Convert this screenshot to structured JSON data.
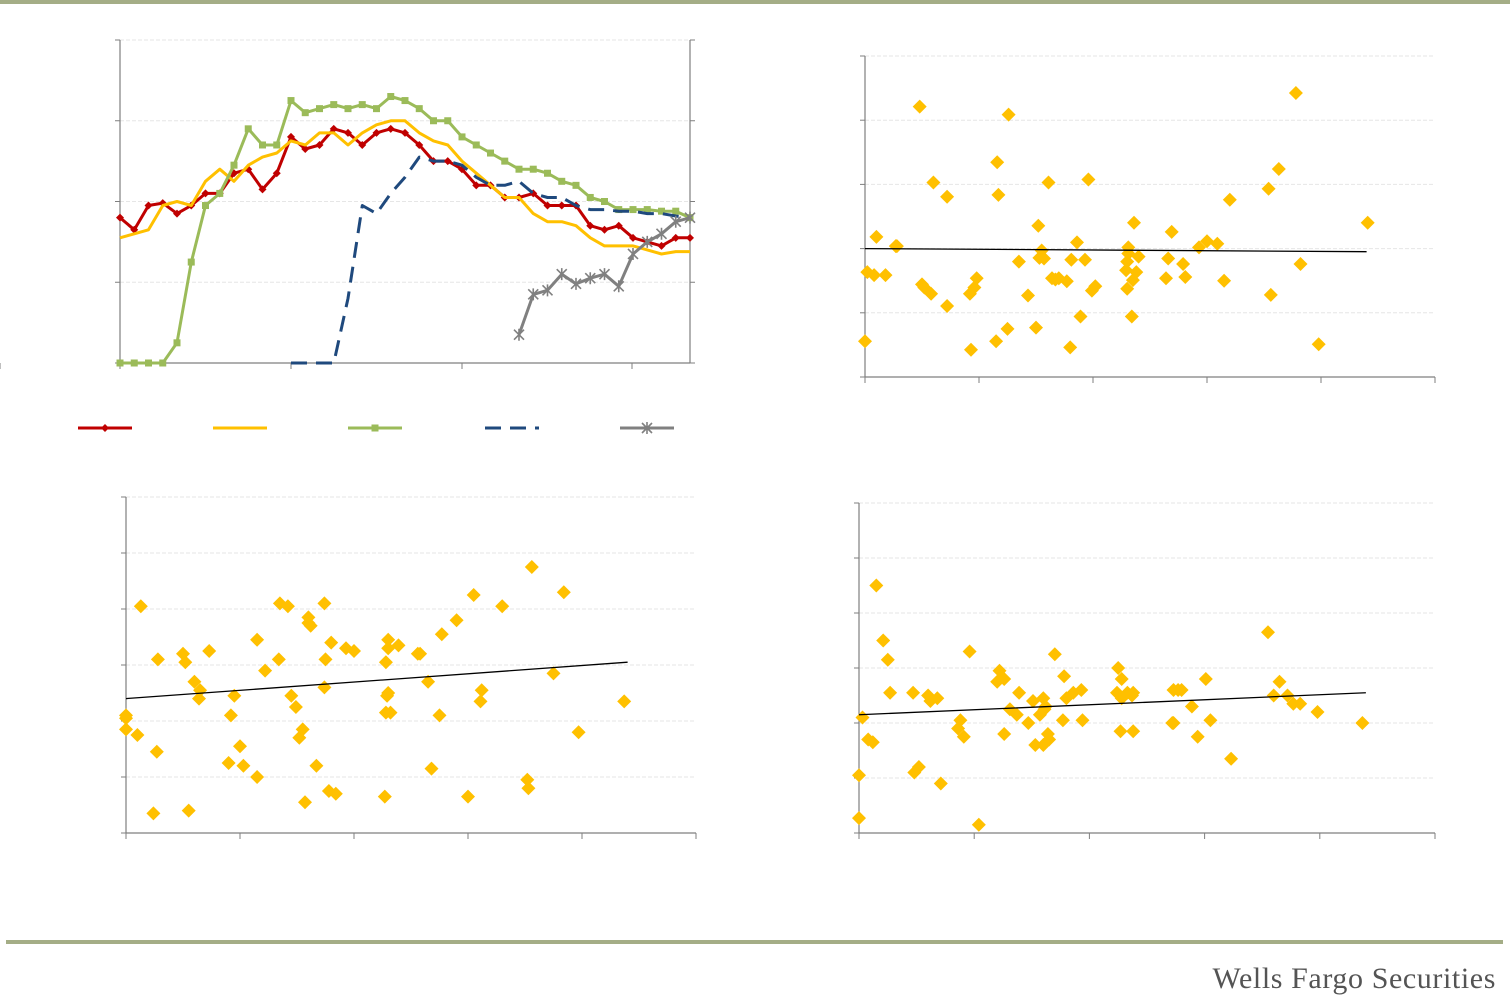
{
  "footer": {
    "brand": "Wells Fargo Securities"
  },
  "colors": {
    "red": "#c00000",
    "orange": "#ffc000",
    "green": "#9bbb59",
    "navy": "#1f497d",
    "gray": "#808080",
    "diamond": "#ffc000",
    "trend": "#000000",
    "axis": "#7f7f7f",
    "grid": "#e6e6e6"
  },
  "chart_data": [
    {
      "type": "line",
      "grid": true,
      "ylim": [
        0,
        4
      ],
      "series": [
        {
          "marker": "diamond",
          "color": "#c00000",
          "values": [
            1.8,
            1.65,
            1.95,
            1.98,
            1.85,
            1.95,
            2.1,
            2.1,
            2.35,
            2.4,
            2.15,
            2.35,
            2.8,
            2.65,
            2.7,
            2.9,
            2.85,
            2.7,
            2.85,
            2.9,
            2.85,
            2.7,
            2.5,
            2.5,
            2.4,
            2.2,
            2.2,
            2.05,
            2.05,
            2.1,
            1.95,
            1.95,
            1.95,
            1.7,
            1.65,
            1.7,
            1.55,
            1.5,
            1.45,
            1.55,
            1.55
          ]
        },
        {
          "marker": "none",
          "color": "#ffc000",
          "values": [
            1.55,
            1.6,
            1.65,
            1.95,
            2.0,
            1.95,
            2.25,
            2.4,
            2.25,
            2.45,
            2.55,
            2.6,
            2.75,
            2.7,
            2.85,
            2.85,
            2.7,
            2.85,
            2.95,
            3.0,
            3.0,
            2.85,
            2.75,
            2.7,
            2.5,
            2.35,
            2.2,
            2.05,
            2.05,
            1.85,
            1.75,
            1.75,
            1.7,
            1.55,
            1.45,
            1.45,
            1.45,
            1.4,
            1.35,
            1.38,
            1.38
          ]
        },
        {
          "marker": "square",
          "color": "#9bbb59",
          "values": [
            0,
            0,
            0,
            0,
            0.25,
            1.25,
            1.95,
            2.1,
            2.45,
            2.9,
            2.7,
            2.7,
            3.25,
            3.1,
            3.15,
            3.2,
            3.15,
            3.2,
            3.15,
            3.3,
            3.25,
            3.15,
            3.0,
            3.0,
            2.8,
            2.7,
            2.6,
            2.5,
            2.4,
            2.4,
            2.35,
            2.25,
            2.2,
            2.05,
            2.0,
            1.9,
            1.9,
            1.9,
            1.88,
            1.88,
            1.8
          ]
        },
        {
          "marker": "none",
          "color": "#1f497d",
          "dashed": true,
          "values": [
            null,
            null,
            null,
            null,
            null,
            null,
            null,
            null,
            null,
            null,
            null,
            null,
            0,
            0,
            0,
            0,
            0.8,
            1.95,
            1.85,
            2.1,
            2.3,
            2.55,
            2.5,
            2.5,
            2.45,
            2.3,
            2.2,
            2.2,
            2.25,
            2.1,
            2.05,
            2.05,
            1.95,
            1.9,
            1.9,
            1.88,
            1.88,
            1.85,
            1.85,
            1.82,
            1.8
          ]
        },
        {
          "marker": "x",
          "color": "#808080",
          "values": [
            null,
            null,
            null,
            null,
            null,
            null,
            null,
            null,
            null,
            null,
            null,
            null,
            null,
            null,
            null,
            null,
            null,
            null,
            null,
            null,
            null,
            null,
            null,
            null,
            null,
            null,
            null,
            null,
            0.35,
            0.85,
            0.9,
            1.1,
            0.98,
            1.05,
            1.1,
            0.95,
            1.35,
            1.5,
            1.6,
            1.75,
            1.8
          ]
        }
      ]
    },
    {
      "type": "scatter",
      "grid": true,
      "xlim": [
        0,
        5
      ],
      "ylim": [
        0,
        5.2
      ],
      "trendline": {
        "x": [
          0,
          4.4
        ],
        "y": [
          2.08,
          2.03
        ]
      },
      "x": [
        0.0,
        0.02,
        0.08,
        0.1,
        0.18,
        0.27,
        0.28,
        0.5,
        0.48,
        0.52,
        0.58,
        0.6,
        0.72,
        0.72,
        0.92,
        0.98,
        0.93,
        0.96,
        1.16,
        1.17,
        1.15,
        1.25,
        1.26,
        1.43,
        1.35,
        1.5,
        1.52,
        1.53,
        1.55,
        1.57,
        1.61,
        1.64,
        1.67,
        1.7,
        1.77,
        1.8,
        1.81,
        1.86,
        1.89,
        1.93,
        1.96,
        1.99,
        2.02,
        2.3,
        2.31,
        2.3,
        2.34,
        2.38,
        2.35,
        2.31,
        2.29,
        2.36,
        2.4,
        2.64,
        2.66,
        2.69,
        2.81,
        2.79,
        2.93,
        3.0,
        3.09,
        3.15,
        3.2,
        3.54,
        3.56,
        3.63,
        3.78,
        3.82,
        3.98,
        4.41
      ],
      "y": [
        0.58,
        1.7,
        1.65,
        2.27,
        1.65,
        2.12,
        2.12,
        1.5,
        4.38,
        1.45,
        1.35,
        3.15,
        1.15,
        2.92,
        1.35,
        1.6,
        0.44,
        1.45,
        3.48,
        2.95,
        0.58,
        0.78,
        4.25,
        1.32,
        1.87,
        0.8,
        2.45,
        1.93,
        2.05,
        1.92,
        3.15,
        1.6,
        1.58,
        1.6,
        1.55,
        0.48,
        1.9,
        2.18,
        0.98,
        1.9,
        3.2,
        1.4,
        1.47,
        1.43,
        2.0,
        1.87,
        0.98,
        1.7,
        1.57,
        2.1,
        1.73,
        2.5,
        1.95,
        1.6,
        1.92,
        2.35,
        1.62,
        1.83,
        2.1,
        2.2,
        2.16,
        1.56,
        2.87,
        3.05,
        1.33,
        3.37,
        4.6,
        1.83,
        0.53,
        2.5
      ]
    },
    {
      "type": "scatter",
      "grid": true,
      "xlim": [
        0,
        5
      ],
      "ylim": [
        0,
        6
      ],
      "trendline": {
        "x": [
          0,
          4.4
        ],
        "y": [
          2.4,
          3.05
        ]
      },
      "x": [
        0.0,
        0.0,
        0.0,
        0.1,
        0.13,
        0.24,
        0.27,
        0.28,
        0.5,
        0.52,
        0.55,
        0.6,
        0.64,
        0.65,
        0.73,
        0.92,
        0.9,
        0.95,
        1.0,
        1.03,
        1.15,
        1.15,
        1.22,
        1.34,
        1.35,
        1.42,
        1.49,
        1.45,
        1.57,
        1.52,
        1.55,
        1.6,
        1.6,
        1.67,
        1.62,
        1.78,
        1.75,
        1.74,
        1.8,
        1.74,
        1.84,
        1.93,
        2.0,
        2.27,
        2.28,
        2.28,
        2.29,
        2.3,
        2.32,
        2.3,
        2.39,
        2.3,
        2.56,
        2.58,
        2.65,
        2.68,
        2.75,
        2.77,
        2.9,
        3.0,
        3.05,
        3.11,
        3.12,
        3.3,
        3.52,
        3.53,
        3.56,
        3.75,
        3.84,
        3.97,
        4.37
      ],
      "y": [
        1.85,
        2.1,
        2.05,
        1.75,
        4.05,
        0.35,
        1.45,
        3.1,
        3.2,
        3.05,
        0.4,
        2.7,
        2.4,
        2.55,
        3.25,
        2.1,
        1.25,
        2.45,
        1.55,
        1.2,
        3.45,
        1.0,
        2.9,
        3.1,
        4.1,
        4.05,
        2.25,
        2.45,
        0.55,
        1.7,
        1.85,
        3.85,
        3.75,
        1.2,
        3.7,
        0.75,
        3.1,
        4.1,
        3.4,
        2.6,
        0.7,
        3.3,
        3.25,
        0.65,
        2.15,
        3.05,
        2.45,
        3.45,
        2.15,
        3.3,
        3.35,
        2.5,
        3.2,
        3.2,
        2.7,
        1.15,
        2.1,
        3.55,
        3.8,
        0.65,
        4.25,
        2.35,
        2.55,
        4.05,
        0.95,
        0.8,
        4.75,
        2.85,
        4.3,
        1.8,
        2.35
      ]
    },
    {
      "type": "scatter",
      "grid": true,
      "xlim": [
        0,
        5
      ],
      "ylim": [
        0,
        6
      ],
      "trendline": {
        "x": [
          0,
          4.4
        ],
        "y": [
          2.15,
          2.55
        ]
      },
      "x": [
        0.0,
        0.0,
        0.03,
        0.08,
        0.12,
        0.15,
        0.21,
        0.25,
        0.27,
        0.47,
        0.48,
        0.52,
        0.6,
        0.62,
        0.68,
        0.71,
        0.86,
        0.88,
        0.91,
        0.96,
        1.04,
        1.2,
        1.26,
        1.22,
        1.26,
        1.31,
        1.37,
        1.39,
        1.47,
        1.53,
        1.6,
        1.51,
        1.6,
        1.65,
        1.57,
        1.61,
        1.64,
        1.62,
        1.7,
        1.78,
        1.77,
        1.86,
        1.93,
        1.8,
        1.94,
        2.24,
        2.28,
        2.25,
        2.27,
        2.37,
        2.28,
        2.38,
        2.33,
        2.38,
        2.72,
        2.73,
        2.77,
        2.8,
        2.89,
        2.73,
        2.94,
        3.05,
        3.01,
        3.23,
        3.55,
        3.6,
        3.72,
        3.65,
        3.83,
        3.77,
        3.98,
        4.37
      ],
      "y": [
        0.27,
        1.05,
        2.1,
        1.7,
        1.65,
        4.5,
        3.5,
        3.15,
        2.55,
        2.55,
        1.1,
        1.2,
        2.5,
        2.4,
        2.45,
        0.9,
        1.9,
        2.05,
        1.75,
        3.3,
        0.15,
        2.75,
        2.8,
        2.95,
        1.8,
        2.25,
        2.15,
        2.55,
        2.0,
        1.6,
        2.45,
        2.4,
        1.6,
        1.7,
        2.15,
        2.25,
        1.8,
        2.3,
        3.25,
        2.85,
        2.05,
        2.55,
        2.6,
        2.45,
        2.05,
        2.55,
        2.45,
        3.0,
        1.85,
        2.5,
        2.8,
        2.55,
        2.55,
        1.85,
        2.0,
        2.0,
        2.6,
        2.6,
        2.3,
        2.6,
        1.75,
        2.05,
        2.8,
        1.35,
        3.65,
        2.5,
        2.5,
        2.75,
        2.35,
        2.35,
        2.2,
        2.0
      ]
    }
  ]
}
